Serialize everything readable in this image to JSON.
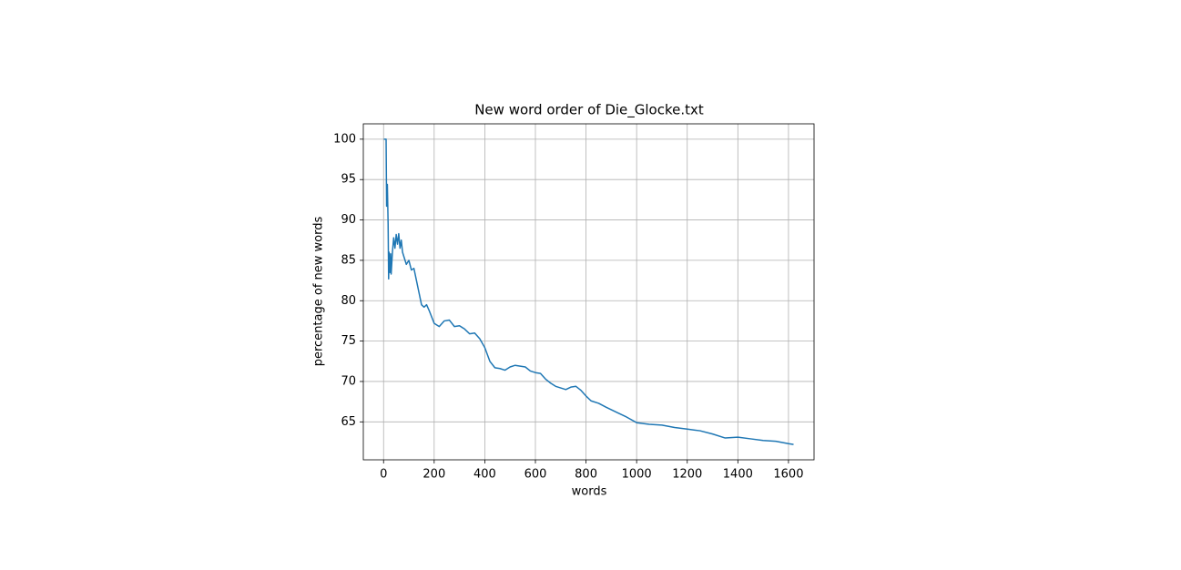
{
  "chart_data": {
    "type": "line",
    "title": "New word order of Die_Glocke.txt",
    "x_label": "words",
    "y_label": "percentage of new words",
    "x": [
      1,
      5,
      10,
      12,
      15,
      18,
      20,
      22,
      25,
      28,
      30,
      35,
      40,
      45,
      50,
      55,
      60,
      65,
      70,
      75,
      80,
      90,
      100,
      110,
      120,
      130,
      140,
      150,
      160,
      170,
      180,
      200,
      220,
      240,
      260,
      280,
      300,
      320,
      340,
      360,
      380,
      400,
      420,
      440,
      460,
      480,
      500,
      520,
      540,
      560,
      580,
      600,
      620,
      640,
      660,
      680,
      700,
      720,
      740,
      760,
      780,
      800,
      820,
      850,
      880,
      920,
      960,
      1000,
      1050,
      1100,
      1150,
      1200,
      1250,
      1300,
      1350,
      1400,
      1450,
      1500,
      1550,
      1600,
      1620
    ],
    "series": [
      {
        "color": "#1f77b4",
        "values": [
          100,
          100,
          100,
          91.7,
          94.4,
          89.5,
          82.7,
          86,
          83.5,
          85.8,
          83.3,
          86,
          87.8,
          86.5,
          88.2,
          87,
          88.3,
          86.5,
          87.5,
          86,
          85.5,
          84.5,
          85,
          83.8,
          84,
          82.5,
          81,
          79.5,
          79.2,
          79.5,
          78.8,
          77.2,
          76.8,
          77.5,
          77.6,
          76.8,
          76.9,
          76.5,
          75.9,
          76,
          75.3,
          74.2,
          72.5,
          71.7,
          71.6,
          71.4,
          71.8,
          72,
          71.9,
          71.8,
          71.3,
          71.1,
          71,
          70.3,
          69.8,
          69.4,
          69.2,
          69,
          69.3,
          69.4,
          68.9,
          68.2,
          67.6,
          67.3,
          66.8,
          66.2,
          65.6,
          64.9,
          64.7,
          64.6,
          64.3,
          64.1,
          63.9,
          63.5,
          63.0,
          63.1,
          62.9,
          62.7,
          62.6,
          62.3,
          62.2
        ]
      }
    ],
    "xlim": [
      -80,
      1701
    ],
    "ylim": [
      60.3,
      101.9
    ],
    "xticks": [
      0,
      200,
      400,
      600,
      800,
      1000,
      1200,
      1400,
      1600
    ],
    "yticks": [
      65,
      70,
      75,
      80,
      85,
      90,
      95,
      100
    ],
    "grid": true
  }
}
